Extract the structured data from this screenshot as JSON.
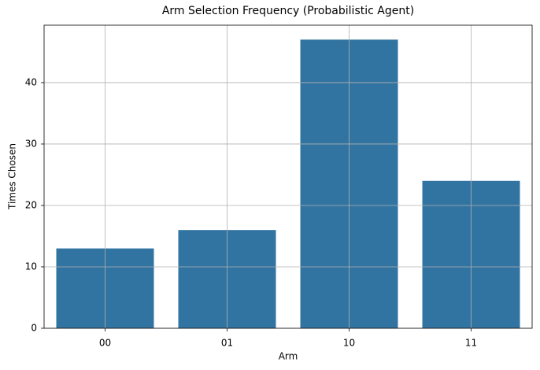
{
  "chart_data": {
    "type": "bar",
    "title": "Arm Selection Frequency (Probabilistic Agent)",
    "x_label": "Arm",
    "y_label": "Times Chosen",
    "categories": [
      "00",
      "01",
      "10",
      "11"
    ],
    "values": [
      13,
      16,
      47,
      24
    ],
    "color": "#3274a1",
    "ylim": [
      0,
      49.35
    ],
    "yticks": [
      0,
      10,
      20,
      30,
      40
    ],
    "grid": true
  }
}
